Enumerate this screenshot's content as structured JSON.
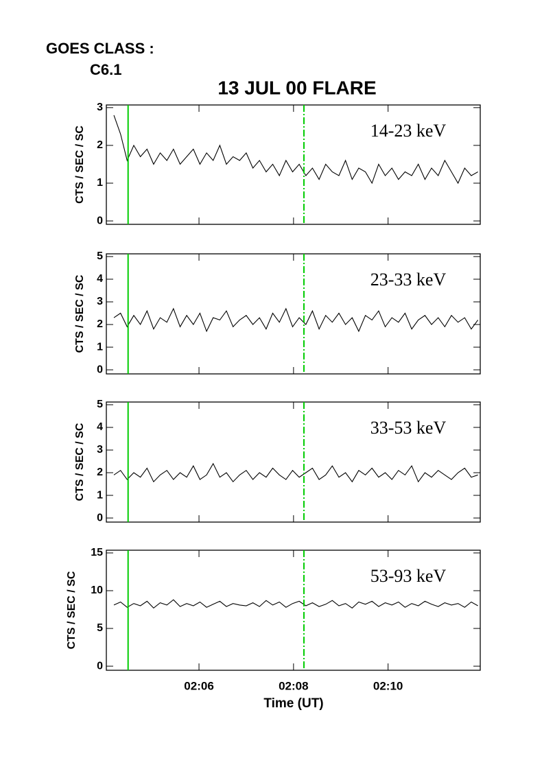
{
  "chart_data": {
    "type": "line",
    "goes_label": "GOES CLASS :",
    "goes_class": "C6.1",
    "title": "13 JUL 00 FLARE",
    "xlabel": "Time (UT)",
    "xlim": [
      4.04,
      11.95
    ],
    "xticks": [
      {
        "value": 6,
        "label": "02:06"
      },
      {
        "value": 8,
        "label": "02:08"
      },
      {
        "value": 10,
        "label": "02:10"
      }
    ],
    "vlines": [
      {
        "value": 4.5,
        "color": "#00cc00",
        "style": "solid"
      },
      {
        "value": 8.22,
        "color": "#00cc00",
        "style": "dashed"
      }
    ],
    "x": [
      4.2,
      4.34,
      4.48,
      4.62,
      4.76,
      4.9,
      5.04,
      5.18,
      5.32,
      5.46,
      5.6,
      5.74,
      5.88,
      6.02,
      6.16,
      6.3,
      6.44,
      6.58,
      6.72,
      6.86,
      7.0,
      7.14,
      7.28,
      7.42,
      7.56,
      7.7,
      7.84,
      7.98,
      8.12,
      8.26,
      8.4,
      8.54,
      8.68,
      8.82,
      8.96,
      9.1,
      9.24,
      9.38,
      9.52,
      9.66,
      9.8,
      9.94,
      10.08,
      10.22,
      10.36,
      10.5,
      10.64,
      10.78,
      10.92,
      11.06,
      11.2,
      11.34,
      11.48,
      11.62,
      11.76,
      11.9
    ],
    "panels": [
      {
        "annotation": "14-23 keV",
        "ylabel": "CTS / SEC / SC",
        "color": "#000000",
        "ylim": [
          -0.09,
          3.07
        ],
        "yticks": [
          0,
          1,
          2,
          3
        ],
        "values": [
          2.8,
          2.3,
          1.6,
          2.0,
          1.7,
          1.9,
          1.5,
          1.8,
          1.6,
          1.9,
          1.5,
          1.7,
          1.9,
          1.5,
          1.8,
          1.6,
          2.0,
          1.5,
          1.7,
          1.6,
          1.8,
          1.4,
          1.6,
          1.3,
          1.5,
          1.2,
          1.6,
          1.3,
          1.5,
          1.2,
          1.4,
          1.1,
          1.5,
          1.3,
          1.2,
          1.6,
          1.1,
          1.4,
          1.3,
          1.0,
          1.5,
          1.2,
          1.4,
          1.1,
          1.3,
          1.2,
          1.5,
          1.1,
          1.4,
          1.2,
          1.6,
          1.3,
          1.0,
          1.4,
          1.2,
          1.3
        ]
      },
      {
        "annotation": "23-33 keV",
        "ylabel": "CTS / SEC / SC",
        "color": "#000000",
        "ylim": [
          -0.18,
          5.12
        ],
        "yticks": [
          0,
          1,
          2,
          3,
          4,
          5
        ],
        "values": [
          2.3,
          2.5,
          1.9,
          2.4,
          2.0,
          2.6,
          1.8,
          2.3,
          2.1,
          2.7,
          1.9,
          2.4,
          2.0,
          2.5,
          1.7,
          2.3,
          2.2,
          2.6,
          1.9,
          2.2,
          2.4,
          2.0,
          2.3,
          1.8,
          2.5,
          2.1,
          2.7,
          1.9,
          2.3,
          2.0,
          2.6,
          1.8,
          2.4,
          2.1,
          2.5,
          2.0,
          2.3,
          1.7,
          2.4,
          2.2,
          2.6,
          1.9,
          2.3,
          2.1,
          2.5,
          1.8,
          2.2,
          2.4,
          2.0,
          2.3,
          1.9,
          2.4,
          2.1,
          2.3,
          1.8,
          2.2
        ]
      },
      {
        "annotation": "33-53 keV",
        "ylabel": "CTS / SEC / SC",
        "color": "#000000",
        "ylim": [
          -0.18,
          5.12
        ],
        "yticks": [
          0,
          1,
          2,
          3,
          4,
          5
        ],
        "values": [
          1.9,
          2.1,
          1.7,
          2.0,
          1.8,
          2.2,
          1.6,
          1.9,
          2.1,
          1.7,
          2.0,
          1.8,
          2.3,
          1.7,
          1.9,
          2.4,
          1.8,
          2.0,
          1.6,
          1.9,
          2.1,
          1.7,
          2.0,
          1.8,
          2.2,
          1.9,
          1.7,
          2.1,
          1.8,
          2.0,
          2.2,
          1.7,
          1.9,
          2.3,
          1.8,
          2.0,
          1.6,
          2.1,
          1.9,
          2.2,
          1.8,
          2.0,
          1.7,
          2.1,
          1.9,
          2.3,
          1.6,
          2.0,
          1.8,
          2.1,
          1.9,
          1.7,
          2.0,
          2.2,
          1.8,
          1.9
        ]
      },
      {
        "annotation": "53-93 keV",
        "ylabel": "CTS / SEC / SC",
        "color": "#000000",
        "ylim": [
          -0.54,
          15.36
        ],
        "yticks": [
          0,
          5,
          10,
          15
        ],
        "values": [
          8.1,
          8.5,
          7.8,
          8.3,
          8.0,
          8.6,
          7.7,
          8.4,
          8.1,
          8.8,
          7.9,
          8.3,
          8.0,
          8.5,
          7.8,
          8.2,
          8.6,
          7.9,
          8.3,
          8.1,
          8.0,
          8.4,
          7.9,
          8.7,
          8.1,
          8.5,
          7.8,
          8.3,
          8.6,
          8.0,
          8.4,
          7.9,
          8.2,
          8.7,
          8.0,
          8.3,
          7.7,
          8.5,
          8.2,
          8.6,
          7.9,
          8.4,
          8.1,
          8.5,
          7.8,
          8.3,
          8.0,
          8.6,
          8.2,
          7.9,
          8.4,
          8.1,
          8.3,
          7.8,
          8.5,
          8.0
        ]
      }
    ]
  }
}
